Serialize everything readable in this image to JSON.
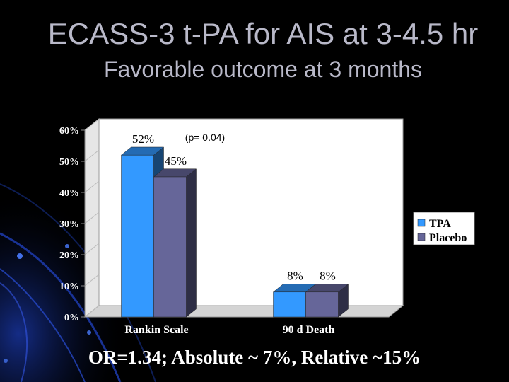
{
  "slide": {
    "title": "ECASS-3 t-PA for AIS at 3-4.5 hr",
    "subtitle": "Favorable outcome at 3 months",
    "footer": "OR=1.34; Absolute ~ 7%, Relative ~15%"
  },
  "chart_data": {
    "type": "bar",
    "categories": [
      "Rankin Scale",
      "90 d Death"
    ],
    "series": [
      {
        "name": "TPA",
        "values": [
          52,
          8
        ],
        "labels": [
          "52%",
          "8%"
        ],
        "color": "#3399ff"
      },
      {
        "name": "Placebo",
        "values": [
          45,
          8
        ],
        "labels": [
          "45%",
          "8%"
        ],
        "color": "#666699"
      }
    ],
    "yticks": [
      "0%",
      "10%",
      "20%",
      "30%",
      "40%",
      "50%",
      "60%"
    ],
    "ylim": [
      0,
      60
    ],
    "annotation": "(p= 0.04)",
    "legend_position": "right",
    "grid": false
  }
}
